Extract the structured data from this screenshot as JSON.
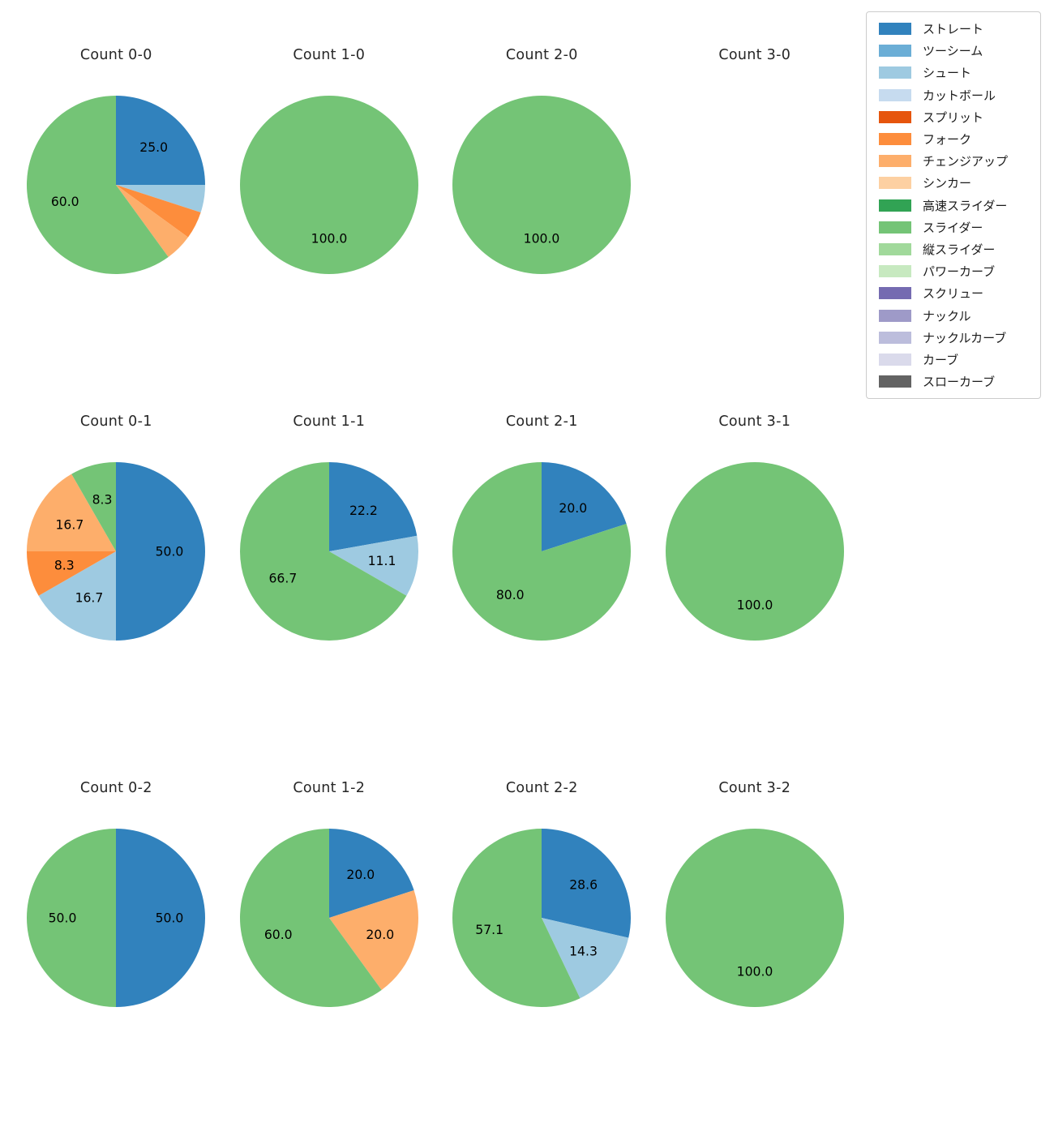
{
  "legend": {
    "items": [
      {
        "label": "ストレート",
        "color": "#3182bd"
      },
      {
        "label": "ツーシーム",
        "color": "#6baed6"
      },
      {
        "label": "シュート",
        "color": "#9ecae1"
      },
      {
        "label": "カットボール",
        "color": "#c6dbef"
      },
      {
        "label": "スプリット",
        "color": "#e6550d"
      },
      {
        "label": "フォーク",
        "color": "#fd8d3c"
      },
      {
        "label": "チェンジアップ",
        "color": "#fdae6b"
      },
      {
        "label": "シンカー",
        "color": "#fdd0a2"
      },
      {
        "label": "高速スライダー",
        "color": "#31a354"
      },
      {
        "label": "スライダー",
        "color": "#74c476"
      },
      {
        "label": "縦スライダー",
        "color": "#a1d99b"
      },
      {
        "label": "パワーカーブ",
        "color": "#c7e9c0"
      },
      {
        "label": "スクリュー",
        "color": "#756bb1"
      },
      {
        "label": "ナックル",
        "color": "#9e9ac8"
      },
      {
        "label": "ナックルカーブ",
        "color": "#bcbddc"
      },
      {
        "label": "カーブ",
        "color": "#dadaeb"
      },
      {
        "label": "スローカーブ",
        "color": "#636363"
      }
    ]
  },
  "chart_data": [
    {
      "type": "pie",
      "title": "Count 0-0",
      "start_angle": 90,
      "direction": "clockwise",
      "slices": [
        {
          "pitch": "ストレート",
          "value": 25.0,
          "label": "25.0"
        },
        {
          "pitch": "シュート",
          "value": 5.0,
          "label": ""
        },
        {
          "pitch": "フォーク",
          "value": 5.0,
          "label": ""
        },
        {
          "pitch": "チェンジアップ",
          "value": 5.0,
          "label": ""
        },
        {
          "pitch": "スライダー",
          "value": 60.0,
          "label": "60.0"
        }
      ]
    },
    {
      "type": "pie",
      "title": "Count 1-0",
      "start_angle": 90,
      "direction": "clockwise",
      "slices": [
        {
          "pitch": "スライダー",
          "value": 100.0,
          "label": "100.0"
        }
      ]
    },
    {
      "type": "pie",
      "title": "Count 2-0",
      "start_angle": 90,
      "direction": "clockwise",
      "slices": [
        {
          "pitch": "スライダー",
          "value": 100.0,
          "label": "100.0"
        }
      ]
    },
    {
      "type": "pie",
      "title": "Count 3-0",
      "start_angle": 90,
      "direction": "clockwise",
      "slices": []
    },
    {
      "type": "pie",
      "title": "Count 0-1",
      "start_angle": 90,
      "direction": "clockwise",
      "slices": [
        {
          "pitch": "ストレート",
          "value": 50.0,
          "label": "50.0"
        },
        {
          "pitch": "シュート",
          "value": 16.7,
          "label": "16.7"
        },
        {
          "pitch": "フォーク",
          "value": 8.3,
          "label": "8.3"
        },
        {
          "pitch": "チェンジアップ",
          "value": 16.7,
          "label": "16.7"
        },
        {
          "pitch": "スライダー",
          "value": 8.3,
          "label": "8.3"
        }
      ]
    },
    {
      "type": "pie",
      "title": "Count 1-1",
      "start_angle": 90,
      "direction": "clockwise",
      "slices": [
        {
          "pitch": "ストレート",
          "value": 22.2,
          "label": "22.2"
        },
        {
          "pitch": "シュート",
          "value": 11.1,
          "label": "11.1"
        },
        {
          "pitch": "スライダー",
          "value": 66.7,
          "label": "66.7"
        }
      ]
    },
    {
      "type": "pie",
      "title": "Count 2-1",
      "start_angle": 90,
      "direction": "clockwise",
      "slices": [
        {
          "pitch": "ストレート",
          "value": 20.0,
          "label": "20.0"
        },
        {
          "pitch": "スライダー",
          "value": 80.0,
          "label": "80.0"
        }
      ]
    },
    {
      "type": "pie",
      "title": "Count 3-1",
      "start_angle": 90,
      "direction": "clockwise",
      "slices": [
        {
          "pitch": "スライダー",
          "value": 100.0,
          "label": "100.0"
        }
      ]
    },
    {
      "type": "pie",
      "title": "Count 0-2",
      "start_angle": 90,
      "direction": "clockwise",
      "slices": [
        {
          "pitch": "ストレート",
          "value": 50.0,
          "label": "50.0"
        },
        {
          "pitch": "スライダー",
          "value": 50.0,
          "label": "50.0"
        }
      ]
    },
    {
      "type": "pie",
      "title": "Count 1-2",
      "start_angle": 90,
      "direction": "clockwise",
      "slices": [
        {
          "pitch": "ストレート",
          "value": 20.0,
          "label": "20.0"
        },
        {
          "pitch": "チェンジアップ",
          "value": 20.0,
          "label": "20.0"
        },
        {
          "pitch": "スライダー",
          "value": 60.0,
          "label": "60.0"
        }
      ]
    },
    {
      "type": "pie",
      "title": "Count 2-2",
      "start_angle": 90,
      "direction": "clockwise",
      "slices": [
        {
          "pitch": "ストレート",
          "value": 28.6,
          "label": "28.6"
        },
        {
          "pitch": "シュート",
          "value": 14.3,
          "label": "14.3"
        },
        {
          "pitch": "スライダー",
          "value": 57.1,
          "label": "57.1"
        }
      ]
    },
    {
      "type": "pie",
      "title": "Count 3-2",
      "start_angle": 90,
      "direction": "clockwise",
      "slices": [
        {
          "pitch": "スライダー",
          "value": 100.0,
          "label": "100.0"
        }
      ]
    }
  ]
}
